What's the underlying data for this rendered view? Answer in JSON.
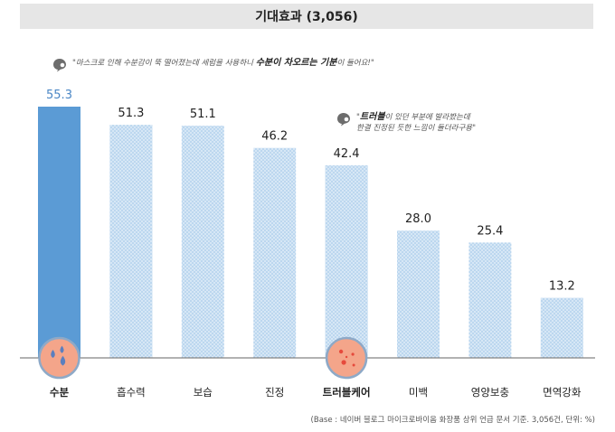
{
  "title": "기대효과 (3,056)",
  "quote1": {
    "prefix": "\"마스크로 인해 수분감이 뚝 떨어졌는데 세럼을 사용하니 ",
    "bold": "수분이 차오르는 기분",
    "suffix": "이 들어요!\""
  },
  "quote2": {
    "line1_prefix": "\"",
    "line1_bold": "트러블",
    "line1_suffix": "이 있던 부분에 발라봤는데",
    "line2": "한결 진정된 듯한 느낌이 들더라구용\""
  },
  "source": "(Base : 네이버 블로그 마이크로바이옴 화장품 상위 언급 문서 기준. 3,056건, 단위: %)",
  "colors": {
    "highlight_bar": "#5b9bd5",
    "pattern_bar": "#bcd7ef",
    "pattern_dot": "#ffffff",
    "highlight_label": "#4a86c5",
    "circle_fill": "#f4a58a",
    "circle_stroke": "#8ea9c7",
    "drop": "#5b7fbf",
    "spot": "#e64a3c",
    "title_bg": "#e6e6e6"
  },
  "chart_data": {
    "type": "bar",
    "categories": [
      "수분",
      "흡수력",
      "보습",
      "진정",
      "트러블케어",
      "미백",
      "영양보충",
      "면역강화"
    ],
    "values": [
      55.3,
      51.3,
      51.1,
      46.2,
      42.4,
      28.0,
      25.4,
      13.2
    ],
    "value_labels": [
      "55.3",
      "51.3",
      "51.1",
      "46.2",
      "42.4",
      "28.0",
      "25.4",
      "13.2"
    ],
    "highlighted_index": 0,
    "bold_category_indices": [
      0,
      4
    ],
    "icons": [
      {
        "index": 0,
        "name": "water-drops-icon"
      },
      {
        "index": 4,
        "name": "skin-trouble-icon"
      }
    ],
    "ylim": [
      0,
      55.3
    ]
  }
}
